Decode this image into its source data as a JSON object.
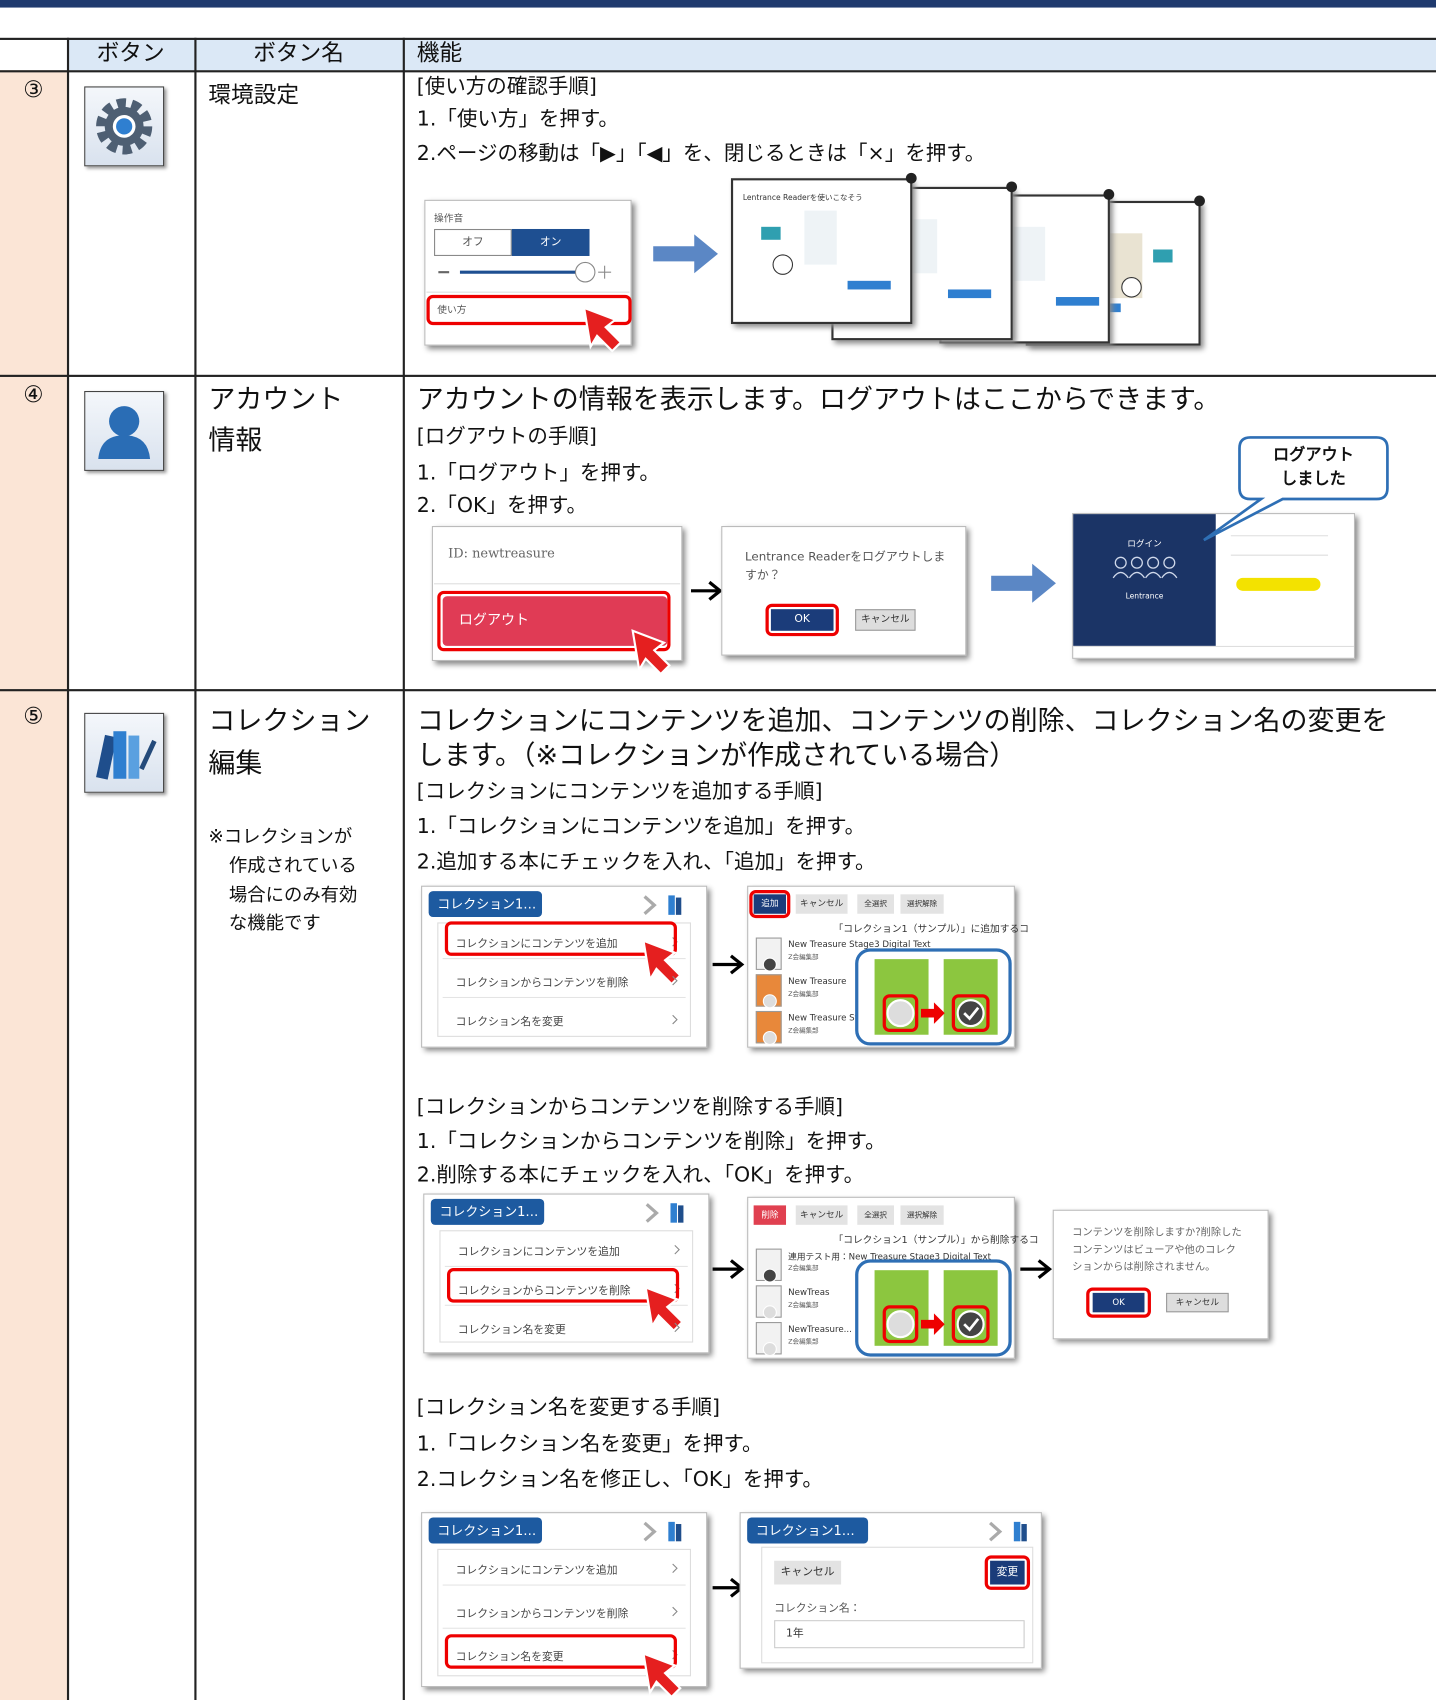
{
  "table": {
    "headers": [
      "ボタン",
      "ボタン名",
      "機能"
    ],
    "rows": [
      {
        "number": "③",
        "name": [
          "環境設定"
        ],
        "steps": [
          "[使い方の確認手順]",
          "1.「使い方」を押す。",
          "2.ページの移動は「▶」「◀」を、閉じるときは「×」を押す。"
        ],
        "settings_panel": {
          "label": "操作音",
          "off": "オフ",
          "on": "オン",
          "link": "使い方"
        },
        "guide_title": "Lentrance Readerを使いこなそう"
      },
      {
        "number": "④",
        "name": [
          "アカウント",
          "情報"
        ],
        "lead": "アカウントの情報を表示します。ログアウトはここからできます。",
        "steps": [
          "[ログアウトの手順]",
          "1.「ログアウト」を押す。",
          "2.「OK」を押す。"
        ],
        "account_menu": {
          "id": "ID: newtreasure",
          "logout": "ログアウト"
        },
        "dialog": {
          "message": [
            "Lentrance Readerをログアウトしま",
            "すか？"
          ],
          "ok": "OK",
          "cancel": "キャンセル"
        },
        "login_screen": {
          "title": "ログイン",
          "brand": "Lentrance"
        },
        "callout": [
          "ログアウト",
          "しました"
        ]
      },
      {
        "number": "⑤",
        "name": [
          "コレクション",
          "編集"
        ],
        "note": [
          "※コレクションが",
          "作成されている",
          "場合にのみ有効",
          "な機能です"
        ],
        "lead": [
          "コレクションにコンテンツを追加、コンテンツの削除、コレクション名の変更を",
          "します。（※コレクションが作成されている場合）"
        ],
        "menu": {
          "title": "コレクション1…",
          "items": [
            "コレクションにコンテンツを追加",
            "コレクションからコンテンツを削除",
            "コレクション名を変更"
          ]
        },
        "sections": [
          {
            "steps": [
              "[コレクションにコンテンツを追加する手順]",
              "1.「コレクションにコンテンツを追加」を押す。",
              "2.追加する本にチェックを入れ、「追加」を押す。"
            ],
            "toolbar": [
              "追加",
              "キャンセル",
              "全選択",
              "選択解除"
            ],
            "heading": "「コレクション1（サンプル）」に追加するコ",
            "books": [
              "New Treasure Stage3 Digital Text",
              "New Treasure",
              "New Treasure St"
            ],
            "publisher": "Z会編集部"
          },
          {
            "steps": [
              "[コレクションからコンテンツを削除する手順]",
              "1.「コレクションからコンテンツを削除」を押す。",
              "2.削除する本にチェックを入れ、「OK」を押す。"
            ],
            "toolbar": [
              "削除",
              "キャンセル",
              "全選択",
              "選択解除"
            ],
            "heading": "「コレクション1（サンプル）」から削除するコ",
            "books": [
              "連用テスト用：New Treasure Stage3 Digital Text",
              "NewTreas",
              "NewTreasure..."
            ],
            "publisher": "Z会編集部",
            "dialog": {
              "message": [
                "コンテンツを削除しますか?削除した",
                "コンテンツはビューアや他のコレク",
                "ションからは削除されません。"
              ],
              "ok": "OK",
              "cancel": "キャンセル"
            }
          },
          {
            "steps": [
              "[コレクション名を変更する手順]",
              "1.「コレクション名を変更」を押す。",
              "2.コレクション名を修正し、「OK」を押す。"
            ],
            "rename": {
              "cancel": "キャンセル",
              "change": "変更",
              "label": "コレクション名：",
              "value": "1年"
            }
          }
        ]
      }
    ]
  }
}
